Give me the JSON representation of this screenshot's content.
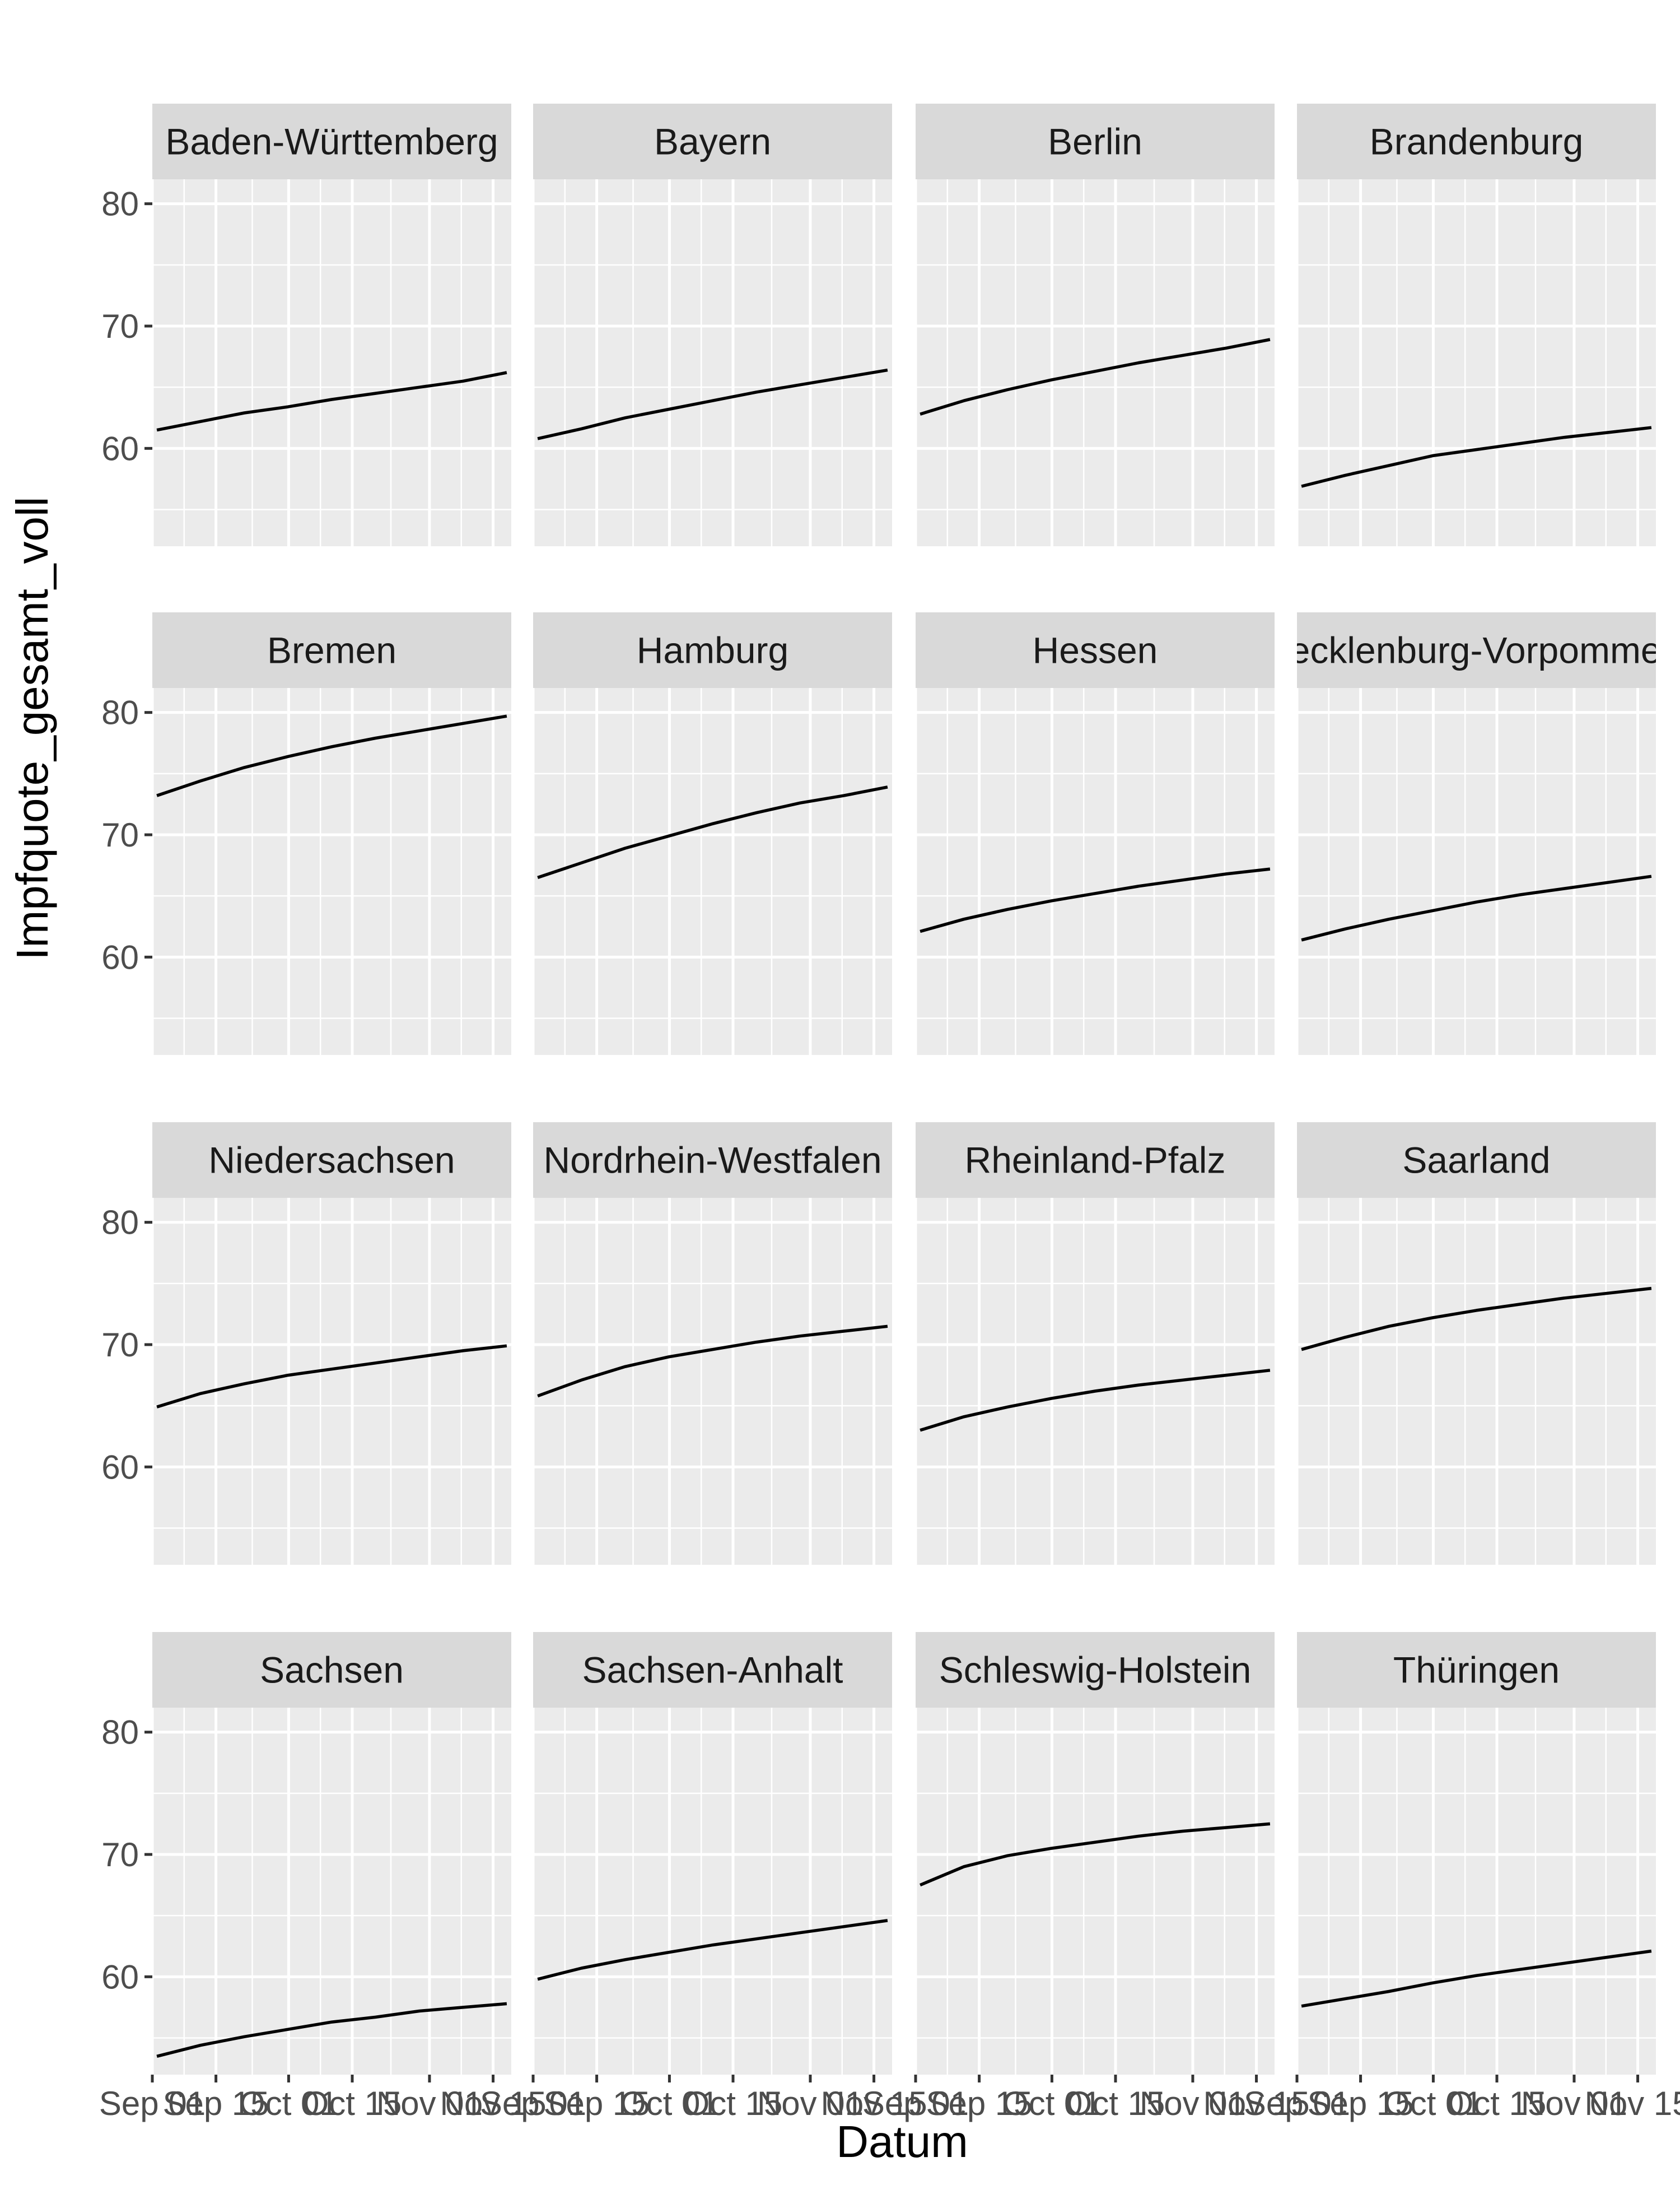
{
  "chart_data": {
    "type": "line",
    "layout": "facet-wrap",
    "xlabel": "Datum",
    "ylabel": "Impfquote_gesamt_voll",
    "x_range": [
      "2021-09-01",
      "2021-11-19"
    ],
    "ylim": [
      52,
      82
    ],
    "y_ticks": [
      60,
      70,
      80
    ],
    "x_ticks": [
      {
        "date": "2021-09-01",
        "label": "Sep 01"
      },
      {
        "date": "2021-09-15",
        "label": "Sep 15"
      },
      {
        "date": "2021-10-01",
        "label": "Oct 01"
      },
      {
        "date": "2021-10-15",
        "label": "Oct 15"
      },
      {
        "date": "2021-11-01",
        "label": "Nov 01"
      },
      {
        "date": "2021-11-15",
        "label": "Nov 15"
      }
    ],
    "grid": true,
    "series": [
      {
        "name": "Baden-Württemberg",
        "start": "2021-09-02",
        "end": "2021-11-18",
        "values": [
          61.5,
          62.2,
          62.9,
          63.4,
          64.0,
          64.5,
          65.0,
          65.5,
          66.2
        ]
      },
      {
        "name": "Bayern",
        "start": "2021-09-02",
        "end": "2021-11-18",
        "values": [
          60.8,
          61.6,
          62.5,
          63.2,
          63.9,
          64.6,
          65.2,
          65.8,
          66.4
        ]
      },
      {
        "name": "Berlin",
        "start": "2021-09-02",
        "end": "2021-11-18",
        "values": [
          62.8,
          63.9,
          64.8,
          65.6,
          66.3,
          67.0,
          67.6,
          68.2,
          68.9
        ]
      },
      {
        "name": "Brandenburg",
        "start": "2021-09-02",
        "end": "2021-11-18",
        "values": [
          56.9,
          57.8,
          58.6,
          59.4,
          59.9,
          60.4,
          60.9,
          61.3,
          61.7
        ]
      },
      {
        "name": "Bremen",
        "start": "2021-09-02",
        "end": "2021-11-18",
        "values": [
          73.2,
          74.4,
          75.5,
          76.4,
          77.2,
          77.9,
          78.5,
          79.1,
          79.7
        ]
      },
      {
        "name": "Hamburg",
        "start": "2021-09-02",
        "end": "2021-11-18",
        "values": [
          66.5,
          67.7,
          68.9,
          69.9,
          70.9,
          71.8,
          72.6,
          73.2,
          73.9
        ]
      },
      {
        "name": "Hessen",
        "start": "2021-09-02",
        "end": "2021-11-18",
        "values": [
          62.1,
          63.1,
          63.9,
          64.6,
          65.2,
          65.8,
          66.3,
          66.8,
          67.2
        ]
      },
      {
        "name": "Mecklenburg-Vorpommern",
        "start": "2021-09-02",
        "end": "2021-11-18",
        "values": [
          61.4,
          62.3,
          63.1,
          63.8,
          64.5,
          65.1,
          65.6,
          66.1,
          66.6
        ]
      },
      {
        "name": "Niedersachsen",
        "start": "2021-09-02",
        "end": "2021-11-18",
        "values": [
          64.9,
          66.0,
          66.8,
          67.5,
          68.0,
          68.5,
          69.0,
          69.5,
          69.9
        ]
      },
      {
        "name": "Nordrhein-Westfalen",
        "start": "2021-09-02",
        "end": "2021-11-18",
        "values": [
          65.8,
          67.1,
          68.2,
          69.0,
          69.6,
          70.2,
          70.7,
          71.1,
          71.5
        ]
      },
      {
        "name": "Rheinland-Pfalz",
        "start": "2021-09-02",
        "end": "2021-11-18",
        "values": [
          63.0,
          64.1,
          64.9,
          65.6,
          66.2,
          66.7,
          67.1,
          67.5,
          67.9
        ]
      },
      {
        "name": "Saarland",
        "start": "2021-09-02",
        "end": "2021-11-18",
        "values": [
          69.6,
          70.6,
          71.5,
          72.2,
          72.8,
          73.3,
          73.8,
          74.2,
          74.6
        ]
      },
      {
        "name": "Sachsen",
        "start": "2021-09-02",
        "end": "2021-11-18",
        "values": [
          53.5,
          54.4,
          55.1,
          55.7,
          56.3,
          56.7,
          57.2,
          57.5,
          57.8
        ]
      },
      {
        "name": "Sachsen-Anhalt",
        "start": "2021-09-02",
        "end": "2021-11-18",
        "values": [
          59.8,
          60.7,
          61.4,
          62.0,
          62.6,
          63.1,
          63.6,
          64.1,
          64.6
        ]
      },
      {
        "name": "Schleswig-Holstein",
        "start": "2021-09-02",
        "end": "2021-11-18",
        "values": [
          67.5,
          69.0,
          69.9,
          70.5,
          71.0,
          71.5,
          71.9,
          72.2,
          72.5
        ]
      },
      {
        "name": "Thüringen",
        "start": "2021-09-02",
        "end": "2021-11-18",
        "values": [
          57.6,
          58.2,
          58.8,
          59.5,
          60.1,
          60.6,
          61.1,
          61.6,
          62.1
        ]
      }
    ]
  }
}
